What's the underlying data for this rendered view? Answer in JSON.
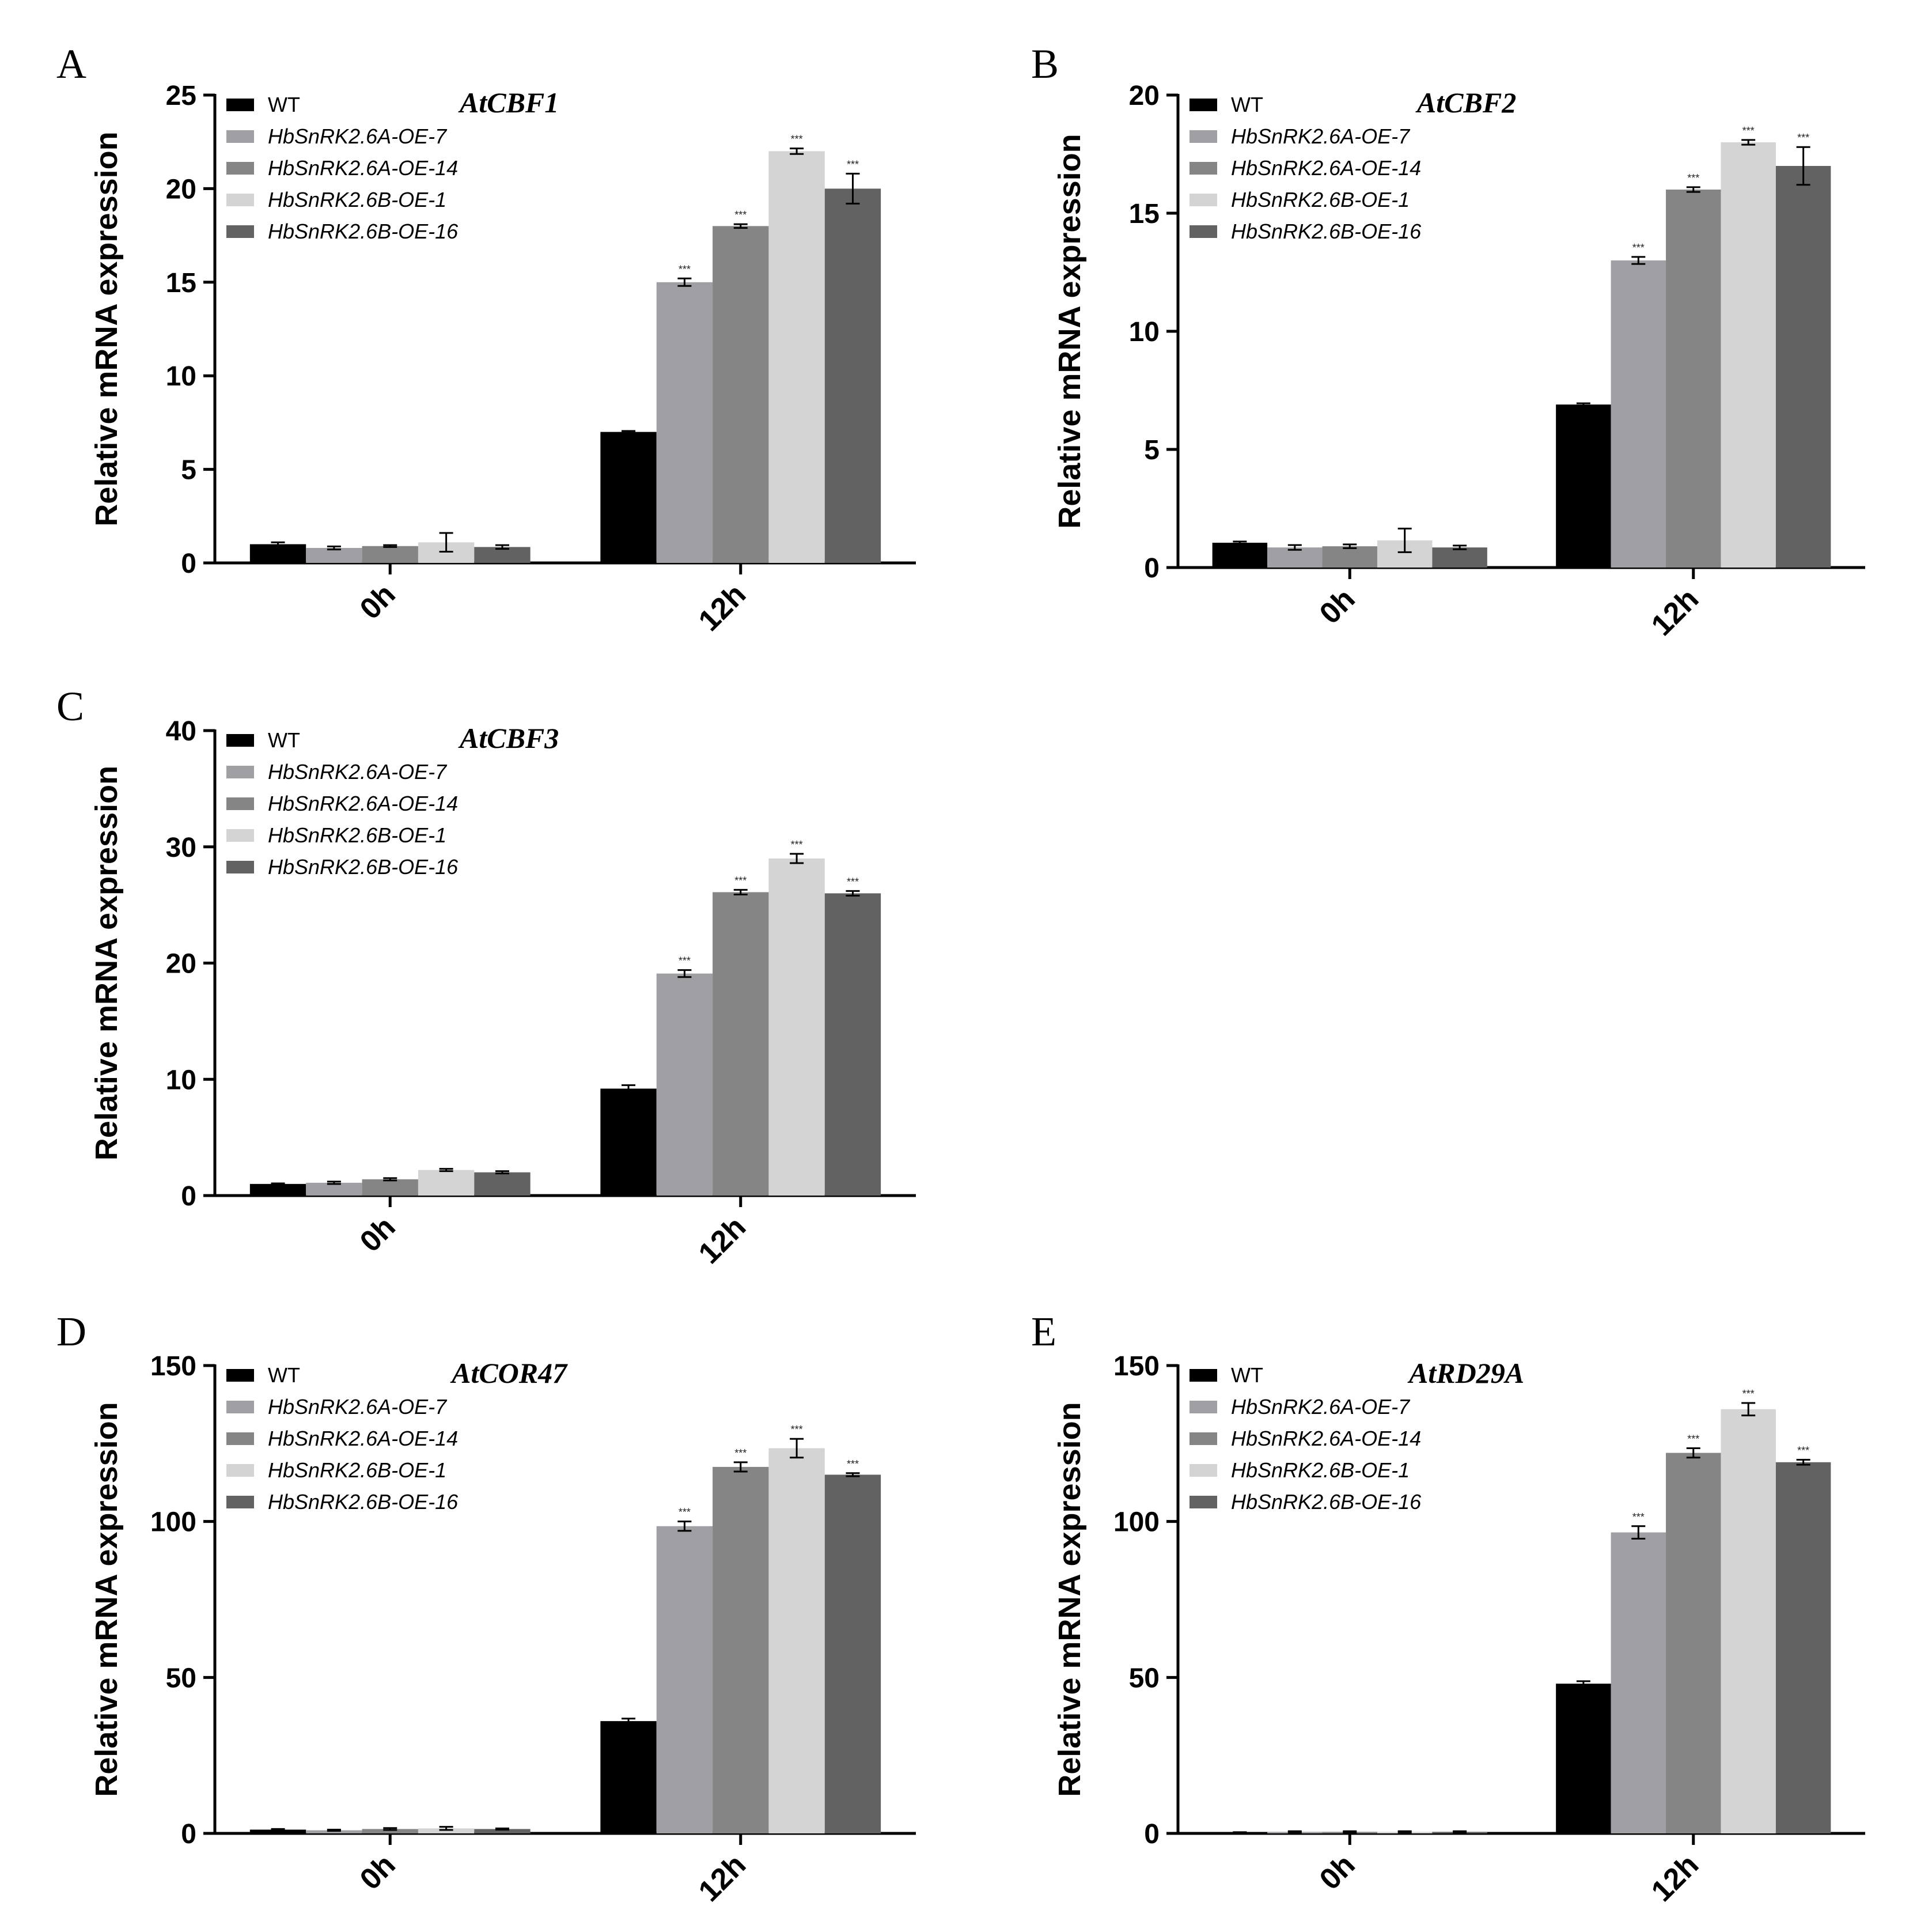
{
  "chart_data": [
    {
      "panel": "A",
      "type": "bar",
      "title": "AtCBF1",
      "xlabel": "",
      "ylabel": "Relative mRNA expression",
      "ylim": [
        0,
        25
      ],
      "yticks": [
        0,
        5,
        10,
        15,
        20,
        25
      ],
      "categories": [
        "0h",
        "12h"
      ],
      "series": [
        {
          "name": "WT",
          "color": "#000000",
          "values": [
            1.0,
            7.0
          ],
          "errors": [
            0.1,
            0.05
          ],
          "sig": [
            "",
            ""
          ]
        },
        {
          "name": "HbSnRK2.6A-OE-7",
          "color": "#a0a0a4",
          "values": [
            0.8,
            15.0
          ],
          "errors": [
            0.08,
            0.2
          ],
          "sig": [
            "",
            "***"
          ]
        },
        {
          "name": "HbSnRK2.6A-OE-14",
          "color": "#858585",
          "values": [
            0.9,
            18.0
          ],
          "errors": [
            0.05,
            0.1
          ],
          "sig": [
            "",
            "***"
          ]
        },
        {
          "name": "HbSnRK2.6B-OE-1",
          "color": "#d4d4d4",
          "values": [
            1.1,
            22.0
          ],
          "errors": [
            0.5,
            0.15
          ],
          "sig": [
            "",
            "***"
          ]
        },
        {
          "name": "HbSnRK2.6B-OE-16",
          "color": "#626262",
          "values": [
            0.85,
            20.0
          ],
          "errors": [
            0.1,
            0.8
          ],
          "sig": [
            "",
            "***"
          ]
        }
      ],
      "legend": "top-left"
    },
    {
      "panel": "B",
      "type": "bar",
      "title": "AtCBF2",
      "xlabel": "",
      "ylabel": "Relative mRNA expression",
      "ylim": [
        0,
        20
      ],
      "yticks": [
        0,
        5,
        10,
        15,
        20
      ],
      "categories": [
        "0h",
        "12h"
      ],
      "series": [
        {
          "name": "WT",
          "color": "#000000",
          "values": [
            1.05,
            6.9
          ],
          "errors": [
            0.05,
            0.05
          ],
          "sig": [
            "",
            ""
          ]
        },
        {
          "name": "HbSnRK2.6A-OE-7",
          "color": "#a0a0a4",
          "values": [
            0.85,
            13.0
          ],
          "errors": [
            0.1,
            0.15
          ],
          "sig": [
            "",
            "***"
          ]
        },
        {
          "name": "HbSnRK2.6A-OE-14",
          "color": "#858585",
          "values": [
            0.9,
            16.0
          ],
          "errors": [
            0.08,
            0.1
          ],
          "sig": [
            "",
            "***"
          ]
        },
        {
          "name": "HbSnRK2.6B-OE-1",
          "color": "#d4d4d4",
          "values": [
            1.15,
            18.0
          ],
          "errors": [
            0.5,
            0.1
          ],
          "sig": [
            "",
            "***"
          ]
        },
        {
          "name": "HbSnRK2.6B-OE-16",
          "color": "#626262",
          "values": [
            0.85,
            17.0
          ],
          "errors": [
            0.08,
            0.8
          ],
          "sig": [
            "",
            "***"
          ]
        }
      ],
      "legend": "top-left"
    },
    {
      "panel": "C",
      "type": "bar",
      "title": "AtCBF3",
      "xlabel": "",
      "ylabel": "Relative mRNA expression",
      "ylim": [
        0,
        40
      ],
      "yticks": [
        0,
        10,
        20,
        30,
        40
      ],
      "categories": [
        "0h",
        "12h"
      ],
      "series": [
        {
          "name": "WT",
          "color": "#000000",
          "values": [
            1.0,
            9.2
          ],
          "errors": [
            0.05,
            0.3
          ],
          "sig": [
            "",
            ""
          ]
        },
        {
          "name": "HbSnRK2.6A-OE-7",
          "color": "#a0a0a4",
          "values": [
            1.1,
            19.1
          ],
          "errors": [
            0.1,
            0.3
          ],
          "sig": [
            "",
            "***"
          ]
        },
        {
          "name": "HbSnRK2.6A-OE-14",
          "color": "#858585",
          "values": [
            1.4,
            26.1
          ],
          "errors": [
            0.1,
            0.2
          ],
          "sig": [
            "",
            "***"
          ]
        },
        {
          "name": "HbSnRK2.6B-OE-1",
          "color": "#d4d4d4",
          "values": [
            2.2,
            29.0
          ],
          "errors": [
            0.1,
            0.4
          ],
          "sig": [
            "",
            "***"
          ]
        },
        {
          "name": "HbSnRK2.6B-OE-16",
          "color": "#626262",
          "values": [
            2.0,
            26.0
          ],
          "errors": [
            0.1,
            0.2
          ],
          "sig": [
            "",
            "***"
          ]
        }
      ],
      "legend": "top-left"
    },
    {
      "panel": "D",
      "type": "bar",
      "title": "AtCOR47",
      "xlabel": "",
      "ylabel": "Relative mRNA expression",
      "ylim": [
        0,
        150
      ],
      "yticks": [
        0,
        50,
        100,
        150
      ],
      "categories": [
        "0h",
        "12h"
      ],
      "series": [
        {
          "name": "WT",
          "color": "#000000",
          "values": [
            1.2,
            36.0
          ],
          "errors": [
            0.2,
            0.8
          ],
          "sig": [
            "",
            ""
          ]
        },
        {
          "name": "HbSnRK2.6A-OE-7",
          "color": "#a0a0a4",
          "values": [
            1.0,
            98.5
          ],
          "errors": [
            0.2,
            1.5
          ],
          "sig": [
            "",
            "***"
          ]
        },
        {
          "name": "HbSnRK2.6A-OE-14",
          "color": "#858585",
          "values": [
            1.4,
            117.5
          ],
          "errors": [
            0.3,
            1.5
          ],
          "sig": [
            "",
            "***"
          ]
        },
        {
          "name": "HbSnRK2.6B-OE-1",
          "color": "#d4d4d4",
          "values": [
            1.6,
            123.5
          ],
          "errors": [
            0.5,
            3.0
          ],
          "sig": [
            "",
            "***"
          ]
        },
        {
          "name": "HbSnRK2.6B-OE-16",
          "color": "#626262",
          "values": [
            1.4,
            115.0
          ],
          "errors": [
            0.2,
            0.5
          ],
          "sig": [
            "",
            "***"
          ]
        }
      ],
      "legend": "top-left"
    },
    {
      "panel": "E",
      "type": "bar",
      "title": "AtRD29A",
      "xlabel": "",
      "ylabel": "Relative mRNA expression",
      "ylim": [
        0,
        150
      ],
      "yticks": [
        0,
        50,
        100,
        150
      ],
      "categories": [
        "0h",
        "12h"
      ],
      "series": [
        {
          "name": "WT",
          "color": "#000000",
          "values": [
            0.3,
            48.0
          ],
          "errors": [
            0.1,
            0.8
          ],
          "sig": [
            "",
            ""
          ]
        },
        {
          "name": "HbSnRK2.6A-OE-7",
          "color": "#a0a0a4",
          "values": [
            0.5,
            96.5
          ],
          "errors": [
            0.2,
            2.0
          ],
          "sig": [
            "",
            "***"
          ]
        },
        {
          "name": "HbSnRK2.6A-OE-14",
          "color": "#858585",
          "values": [
            0.5,
            122.0
          ],
          "errors": [
            0.2,
            1.5
          ],
          "sig": [
            "",
            "***"
          ]
        },
        {
          "name": "HbSnRK2.6B-OE-1",
          "color": "#d4d4d4",
          "values": [
            0.5,
            136.0
          ],
          "errors": [
            0.2,
            2.0
          ],
          "sig": [
            "",
            "***"
          ]
        },
        {
          "name": "HbSnRK2.6B-OE-16",
          "color": "#626262",
          "values": [
            0.5,
            119.0
          ],
          "errors": [
            0.2,
            0.8
          ],
          "sig": [
            "",
            "***"
          ]
        }
      ],
      "legend": "top-left"
    }
  ]
}
